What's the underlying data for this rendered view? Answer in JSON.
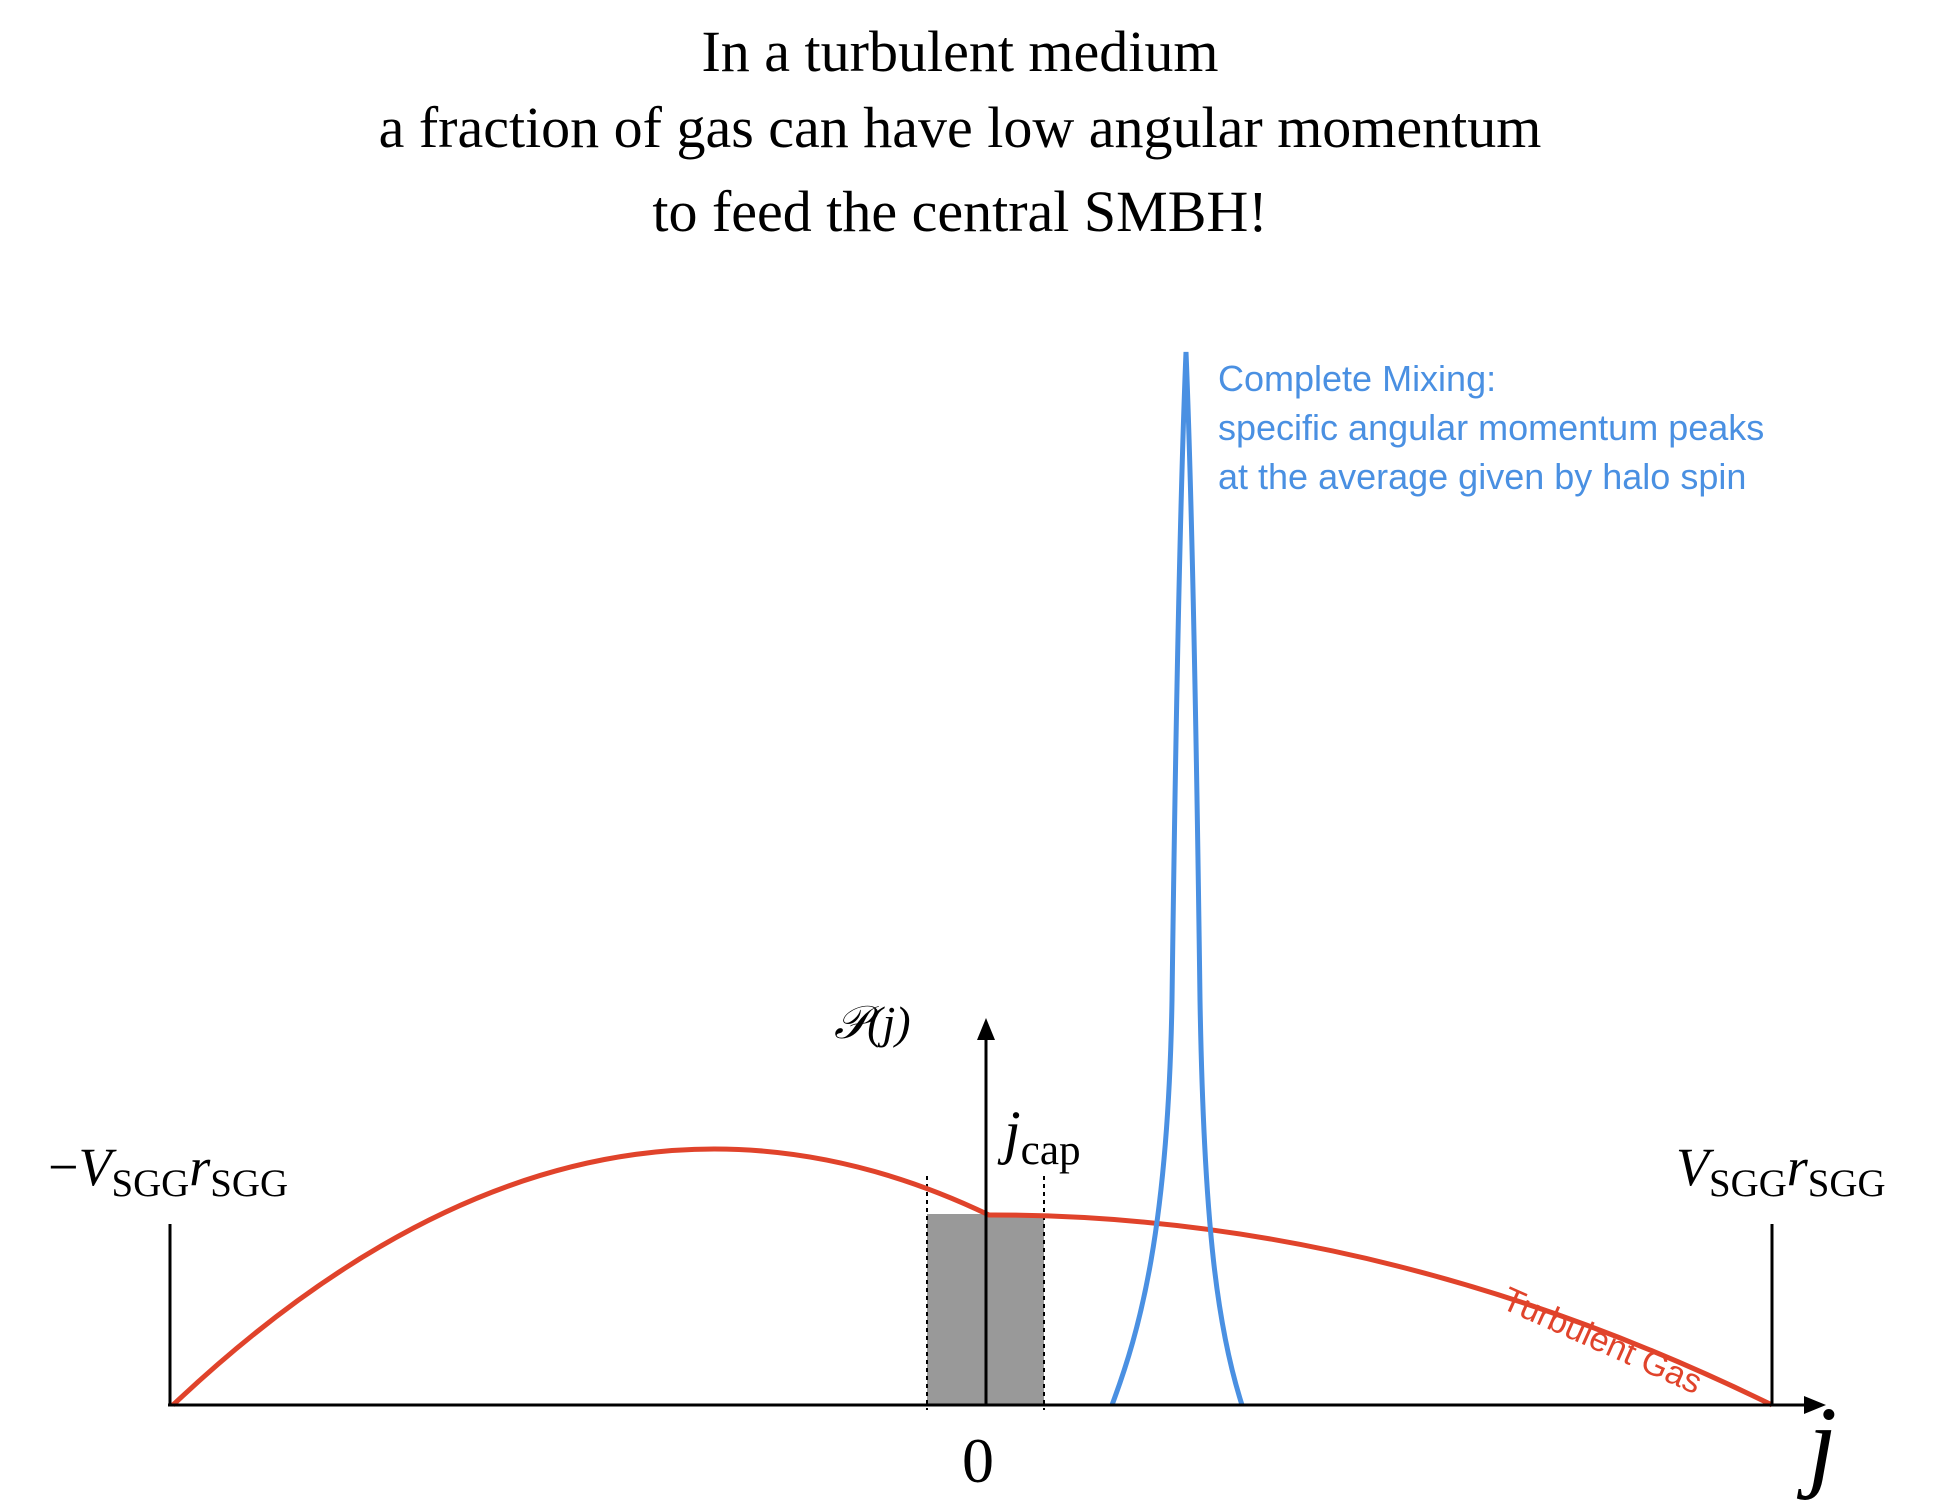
{
  "title": {
    "line1": "In a turbulent medium",
    "line2": "a fraction of gas can have low angular momentum",
    "line3": "to feed the central SMBH!"
  },
  "annotations": {
    "complete_mixing": [
      "Complete Mixing:",
      "specific angular momentum peaks",
      "at the average given by halo spin"
    ],
    "turbulent_gas": "Turbulent Gas"
  },
  "axis_labels": {
    "y_axis_symbol": "𝒫",
    "y_axis_arg": "(j)",
    "x_axis": "j",
    "origin": "0",
    "left_limit": {
      "sign": "−",
      "v": "V",
      "v_sub": "SGG",
      "r": "r",
      "r_sub": "SGG"
    },
    "right_limit": {
      "v": "V",
      "v_sub": "SGG",
      "r": "r",
      "r_sub": "SGG"
    },
    "jcap": {
      "j": "j",
      "sub": "cap"
    }
  },
  "colors": {
    "turbulent": "#e0432b",
    "mixing": "#4a90e2",
    "capture_region": "#999999",
    "axes": "#000000"
  }
}
